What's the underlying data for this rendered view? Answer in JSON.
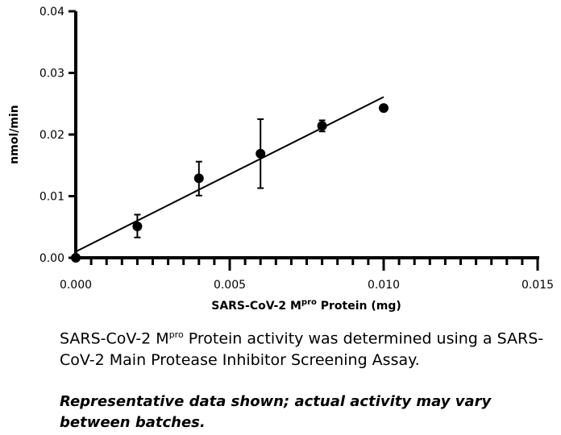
{
  "chart_data": {
    "type": "scatter",
    "title": "",
    "xlabel_main": "SARS-CoV-2 M",
    "xlabel_sup": "pro",
    "xlabel_rest": " Protein (mg)",
    "ylabel": "nmol/min",
    "xlim": [
      0,
      0.015
    ],
    "ylim": [
      0,
      0.04
    ],
    "x_ticks": [
      "0.000",
      "0.005",
      "0.010",
      "0.015"
    ],
    "y_ticks": [
      "0.00",
      "0.01",
      "0.02",
      "0.03",
      "0.04"
    ],
    "points": [
      {
        "x": 0.0,
        "y": 0.0,
        "err_low": null,
        "err_high": null
      },
      {
        "x": 0.002,
        "y": 0.0051,
        "err_low": 0.0033,
        "err_high": 0.007
      },
      {
        "x": 0.004,
        "y": 0.0129,
        "err_low": 0.0101,
        "err_high": 0.0156
      },
      {
        "x": 0.006,
        "y": 0.0169,
        "err_low": 0.0113,
        "err_high": 0.0225
      },
      {
        "x": 0.008,
        "y": 0.0214,
        "err_low": 0.0205,
        "err_high": 0.0223
      },
      {
        "x": 0.01,
        "y": 0.0243,
        "err_low": null,
        "err_high": null
      }
    ],
    "fit_line": {
      "x": [
        0,
        0.01
      ],
      "y": [
        0.001,
        0.0261
      ]
    },
    "grid": false,
    "legend": "none"
  },
  "caption": {
    "pre": "SARS-CoV-2 M",
    "sup": "pro",
    "post": " Protein activity was determined using a SARS-CoV-2 Main Protease Inhibitor Screening Assay."
  },
  "note": "Representative data shown; actual activity may vary between batches."
}
